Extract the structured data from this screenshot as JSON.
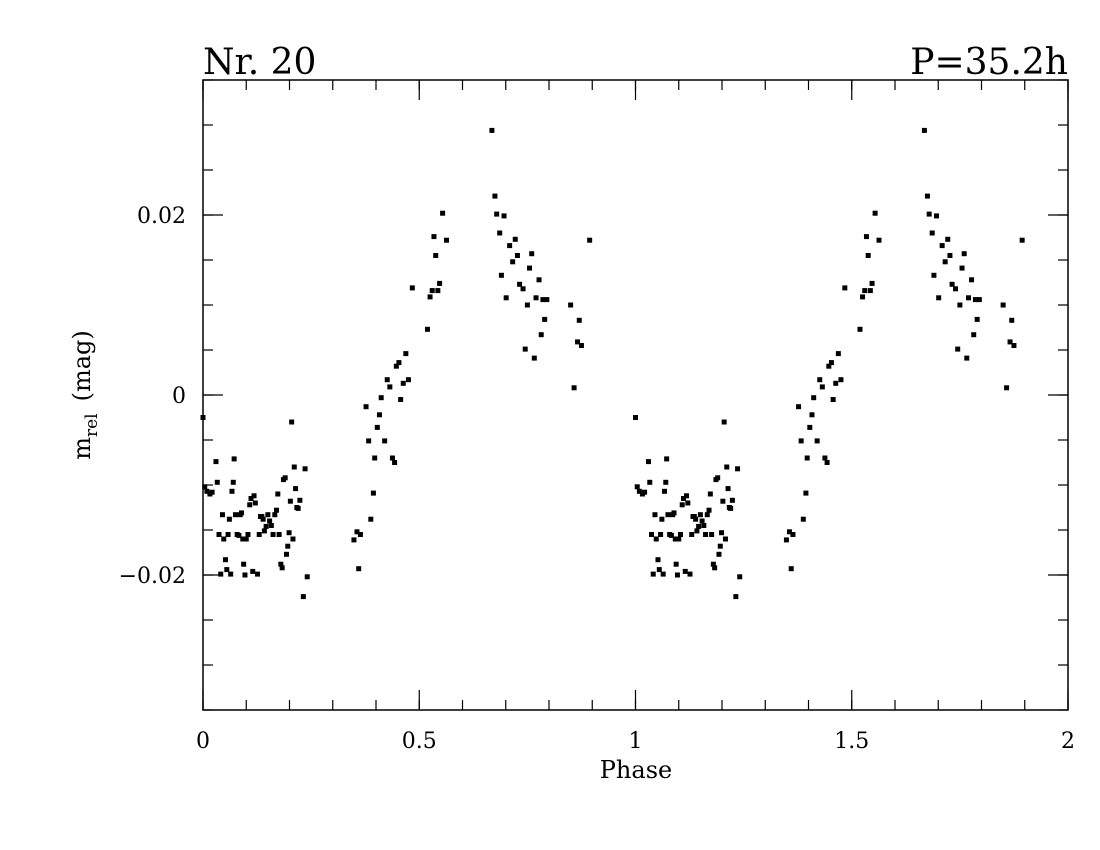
{
  "chart_data": {
    "type": "scatter",
    "title_left": "Nr. 20",
    "title_right": "P=35.2h",
    "xlabel": "Phase",
    "ylabel_main": "m",
    "ylabel_sub": "rel",
    "ylabel_unit": "(mag)",
    "xlim": [
      0,
      2
    ],
    "ylim": [
      0.035,
      -0.035
    ],
    "y_inverted": true,
    "x_ticks": [
      {
        "value": 0,
        "label": "0"
      },
      {
        "value": 0.5,
        "label": "0.5"
      },
      {
        "value": 1,
        "label": "1"
      },
      {
        "value": 1.5,
        "label": "1.5"
      },
      {
        "value": 2,
        "label": "2"
      }
    ],
    "y_ticks": [
      {
        "value": -0.02,
        "label": "−0.02"
      },
      {
        "value": 0,
        "label": "0"
      },
      {
        "value": 0.02,
        "label": "0.02"
      }
    ],
    "x_minor_step": 0.1,
    "y_minor_step": 0.005,
    "marker_color": "#000000",
    "phase_repeat": 1,
    "points": [
      [
        0.0,
        -0.0025
      ],
      [
        0.004,
        -0.0102
      ],
      [
        0.009,
        -0.0107
      ],
      [
        0.016,
        -0.011
      ],
      [
        0.021,
        -0.0108
      ],
      [
        0.03,
        -0.0074
      ],
      [
        0.033,
        -0.0097
      ],
      [
        0.037,
        -0.0155
      ],
      [
        0.041,
        -0.0199
      ],
      [
        0.045,
        -0.0133
      ],
      [
        0.048,
        -0.016
      ],
      [
        0.052,
        -0.0183
      ],
      [
        0.055,
        -0.0194
      ],
      [
        0.058,
        -0.0155
      ],
      [
        0.061,
        -0.0138
      ],
      [
        0.064,
        -0.0199
      ],
      [
        0.067,
        -0.0107
      ],
      [
        0.07,
        -0.0097
      ],
      [
        0.072,
        -0.0071
      ],
      [
        0.075,
        -0.0133
      ],
      [
        0.079,
        -0.0155
      ],
      [
        0.083,
        -0.0156
      ],
      [
        0.086,
        -0.0133
      ],
      [
        0.089,
        -0.0131
      ],
      [
        0.092,
        -0.016
      ],
      [
        0.094,
        -0.0188
      ],
      [
        0.097,
        -0.02
      ],
      [
        0.1,
        -0.016
      ],
      [
        0.104,
        -0.0155
      ],
      [
        0.108,
        -0.0122
      ],
      [
        0.111,
        -0.0115
      ],
      [
        0.115,
        -0.0196
      ],
      [
        0.118,
        -0.0112
      ],
      [
        0.121,
        -0.012
      ],
      [
        0.126,
        -0.0199
      ],
      [
        0.13,
        -0.0155
      ],
      [
        0.133,
        -0.0135
      ],
      [
        0.136,
        -0.0135
      ],
      [
        0.139,
        -0.0138
      ],
      [
        0.142,
        -0.0151
      ],
      [
        0.146,
        -0.0146
      ],
      [
        0.15,
        -0.0133
      ],
      [
        0.154,
        -0.014
      ],
      [
        0.158,
        -0.0145
      ],
      [
        0.162,
        -0.0155
      ],
      [
        0.166,
        -0.0133
      ],
      [
        0.17,
        -0.0128
      ],
      [
        0.173,
        -0.011
      ],
      [
        0.176,
        -0.0155
      ],
      [
        0.18,
        -0.0188
      ],
      [
        0.183,
        -0.0192
      ],
      [
        0.186,
        -0.0094
      ],
      [
        0.19,
        -0.0092
      ],
      [
        0.193,
        -0.0177
      ],
      [
        0.196,
        -0.0168
      ],
      [
        0.199,
        -0.0153
      ],
      [
        0.202,
        -0.0118
      ],
      [
        0.205,
        -0.003
      ],
      [
        0.208,
        -0.016
      ],
      [
        0.211,
        -0.008
      ],
      [
        0.214,
        -0.0104
      ],
      [
        0.217,
        -0.0125
      ],
      [
        0.22,
        -0.0126
      ],
      [
        0.224,
        -0.0117
      ],
      [
        0.232,
        -0.0224
      ],
      [
        0.236,
        -0.0082
      ],
      [
        0.241,
        -0.0202
      ],
      [
        0.349,
        -0.0161
      ],
      [
        0.356,
        -0.0152
      ],
      [
        0.36,
        -0.0193
      ],
      [
        0.364,
        -0.0155
      ],
      [
        0.377,
        -0.0013
      ],
      [
        0.383,
        -0.0051
      ],
      [
        0.388,
        -0.0138
      ],
      [
        0.394,
        -0.0109
      ],
      [
        0.397,
        -0.007
      ],
      [
        0.403,
        -0.0036
      ],
      [
        0.408,
        -0.0022
      ],
      [
        0.412,
        -0.0003
      ],
      [
        0.42,
        -0.0051
      ],
      [
        0.426,
        0.0017
      ],
      [
        0.432,
        0.0009
      ],
      [
        0.438,
        -0.007
      ],
      [
        0.443,
        -0.0075
      ],
      [
        0.447,
        0.0032
      ],
      [
        0.453,
        0.0036
      ],
      [
        0.457,
        -0.0005
      ],
      [
        0.463,
        0.0013
      ],
      [
        0.469,
        0.0046
      ],
      [
        0.475,
        0.0017
      ],
      [
        0.484,
        0.0119
      ],
      [
        0.519,
        0.0073
      ],
      [
        0.525,
        0.0109
      ],
      [
        0.53,
        0.0116
      ],
      [
        0.534,
        0.0176
      ],
      [
        0.538,
        0.0155
      ],
      [
        0.543,
        0.0116
      ],
      [
        0.547,
        0.0124
      ],
      [
        0.554,
        0.0202
      ],
      [
        0.563,
        0.0172
      ],
      [
        0.668,
        0.0294
      ],
      [
        0.675,
        0.0221
      ],
      [
        0.679,
        0.0201
      ],
      [
        0.686,
        0.018
      ],
      [
        0.69,
        0.0133
      ],
      [
        0.696,
        0.0199
      ],
      [
        0.701,
        0.0108
      ],
      [
        0.709,
        0.0166
      ],
      [
        0.716,
        0.0148
      ],
      [
        0.722,
        0.0173
      ],
      [
        0.727,
        0.0155
      ],
      [
        0.732,
        0.0123
      ],
      [
        0.74,
        0.0118
      ],
      [
        0.745,
        0.0051
      ],
      [
        0.75,
        0.01
      ],
      [
        0.755,
        0.0141
      ],
      [
        0.76,
        0.0157
      ],
      [
        0.766,
        0.0041
      ],
      [
        0.77,
        0.0108
      ],
      [
        0.777,
        0.0128
      ],
      [
        0.782,
        0.0067
      ],
      [
        0.786,
        0.0106
      ],
      [
        0.79,
        0.0084
      ],
      [
        0.795,
        0.0106
      ],
      [
        0.85,
        0.01
      ],
      [
        0.858,
        0.0008
      ],
      [
        0.866,
        0.0059
      ],
      [
        0.87,
        0.0083
      ],
      [
        0.875,
        0.0055
      ],
      [
        0.894,
        0.0172
      ]
    ]
  }
}
